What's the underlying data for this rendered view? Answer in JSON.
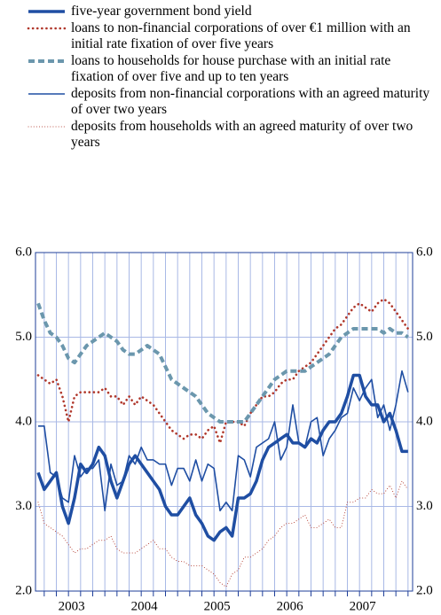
{
  "chart_data": {
    "type": "line",
    "x": [
      null,
      null,
      null,
      null,
      null,
      null,
      "2003",
      null,
      null,
      null,
      null,
      null,
      null,
      null,
      null,
      null,
      null,
      null,
      "2004",
      null,
      null,
      null,
      null,
      null,
      null,
      null,
      null,
      null,
      null,
      null,
      "2005",
      null,
      null,
      null,
      null,
      null,
      null,
      null,
      null,
      null,
      null,
      null,
      "2006",
      null,
      null,
      null,
      null,
      null,
      null,
      null,
      null,
      null,
      null,
      null,
      "2007",
      null,
      null,
      null,
      null,
      null,
      null,
      null
    ],
    "series": [
      {
        "name": "five-year government bond yield",
        "color": "#1f4ea3",
        "values": [
          3.4,
          3.2,
          3.3,
          3.4,
          3.0,
          2.8,
          3.1,
          3.5,
          3.4,
          3.5,
          3.7,
          3.6,
          3.3,
          3.1,
          3.3,
          3.5,
          3.6,
          3.5,
          3.4,
          3.3,
          3.2,
          3.0,
          2.9,
          2.9,
          3.0,
          3.1,
          2.9,
          2.8,
          2.65,
          2.6,
          2.7,
          2.75,
          2.65,
          3.1,
          3.1,
          3.15,
          3.3,
          3.55,
          3.7,
          3.75,
          3.8,
          3.85,
          3.75,
          3.75,
          3.7,
          3.8,
          3.75,
          3.9,
          4.0,
          4.0,
          4.1,
          4.3,
          4.55,
          4.55,
          4.3,
          4.2,
          4.2,
          4.0,
          4.1,
          3.9,
          3.65,
          3.65
        ]
      },
      {
        "name": "loans to non-financial corporations of over €1 million with an initial rate fixation of over five years",
        "color": "#b0372b",
        "values": [
          4.55,
          4.5,
          4.45,
          4.5,
          4.3,
          4.0,
          4.3,
          4.35,
          4.35,
          4.35,
          4.35,
          4.4,
          4.3,
          4.3,
          4.2,
          4.3,
          4.2,
          4.3,
          4.25,
          4.2,
          4.1,
          4.0,
          3.9,
          3.85,
          3.8,
          3.85,
          3.85,
          3.8,
          3.9,
          3.95,
          3.75,
          4.0,
          4.0,
          4.0,
          3.95,
          4.1,
          4.2,
          4.3,
          4.3,
          4.35,
          4.45,
          4.5,
          4.5,
          4.6,
          4.65,
          4.7,
          4.8,
          4.9,
          5.0,
          5.1,
          5.15,
          5.25,
          5.35,
          5.4,
          5.35,
          5.3,
          5.4,
          5.45,
          5.4,
          5.3,
          5.2,
          5.1
        ]
      },
      {
        "name": "loans to households for house purchase with an initial rate fixation of over five and up to ten years",
        "color": "#6b97ad",
        "values": [
          5.4,
          5.2,
          5.05,
          5.0,
          4.9,
          4.75,
          4.7,
          4.8,
          4.9,
          4.95,
          5.0,
          5.05,
          5.0,
          4.95,
          4.85,
          4.8,
          4.8,
          4.85,
          4.9,
          4.85,
          4.8,
          4.65,
          4.5,
          4.45,
          4.4,
          4.35,
          4.3,
          4.2,
          4.1,
          4.05,
          4.0,
          4.0,
          4.0,
          4.0,
          4.0,
          4.1,
          4.2,
          4.3,
          4.4,
          4.5,
          4.55,
          4.6,
          4.6,
          4.6,
          4.6,
          4.65,
          4.7,
          4.75,
          4.8,
          4.9,
          5.0,
          5.05,
          5.1,
          5.1,
          5.1,
          5.1,
          5.1,
          5.05,
          5.1,
          5.05,
          5.05,
          5.0
        ]
      },
      {
        "name": "deposits from non-financial corporations with an agreed maturity of over two years",
        "color": "#1f4ea3",
        "values": [
          3.95,
          3.95,
          3.4,
          3.35,
          3.1,
          3.05,
          3.6,
          3.35,
          3.45,
          3.45,
          3.55,
          2.95,
          3.5,
          3.25,
          3.3,
          3.6,
          3.5,
          3.7,
          3.55,
          3.55,
          3.5,
          3.5,
          3.25,
          3.45,
          3.45,
          3.3,
          3.55,
          3.3,
          3.5,
          3.45,
          2.95,
          3.05,
          2.95,
          3.6,
          3.55,
          3.35,
          3.7,
          3.75,
          3.8,
          4.0,
          3.55,
          3.7,
          4.2,
          3.75,
          3.7,
          4.0,
          4.05,
          3.6,
          3.8,
          3.9,
          4.05,
          4.1,
          4.4,
          4.25,
          4.4,
          4.5,
          4.05,
          4.2,
          3.9,
          4.2,
          4.6,
          4.35
        ]
      },
      {
        "name": "deposits from households with an agreed maturity of over two years",
        "color": "#b0372b",
        "values": [
          3.05,
          2.8,
          2.75,
          2.7,
          2.65,
          2.55,
          2.45,
          2.5,
          2.5,
          2.55,
          2.6,
          2.6,
          2.65,
          2.5,
          2.45,
          2.45,
          2.45,
          2.5,
          2.55,
          2.6,
          2.5,
          2.5,
          2.4,
          2.35,
          2.35,
          2.3,
          2.3,
          2.3,
          2.25,
          2.2,
          2.1,
          2.05,
          2.2,
          2.25,
          2.4,
          2.4,
          2.45,
          2.5,
          2.6,
          2.65,
          2.75,
          2.8,
          2.8,
          2.85,
          2.9,
          2.75,
          2.75,
          2.8,
          2.85,
          2.75,
          2.75,
          3.05,
          3.05,
          3.1,
          3.1,
          3.2,
          3.15,
          3.15,
          3.25,
          3.1,
          3.3,
          3.2
        ]
      }
    ],
    "ylim": [
      2,
      6
    ],
    "yticks": [
      {
        "value": 2,
        "label": "2.0"
      },
      {
        "value": 3,
        "label": "3.0"
      },
      {
        "value": 4,
        "label": "4.0"
      },
      {
        "value": 5,
        "label": "5.0"
      },
      {
        "value": 6,
        "label": "6.0"
      }
    ],
    "y2lim": [
      2,
      6
    ],
    "y2ticks": [
      {
        "value": 2,
        "label": "2.0"
      },
      {
        "value": 3,
        "label": "3.0"
      },
      {
        "value": 4,
        "label": "4.0"
      },
      {
        "value": 5,
        "label": "5.0"
      },
      {
        "value": 6,
        "label": "6.0"
      }
    ],
    "grid": true
  }
}
